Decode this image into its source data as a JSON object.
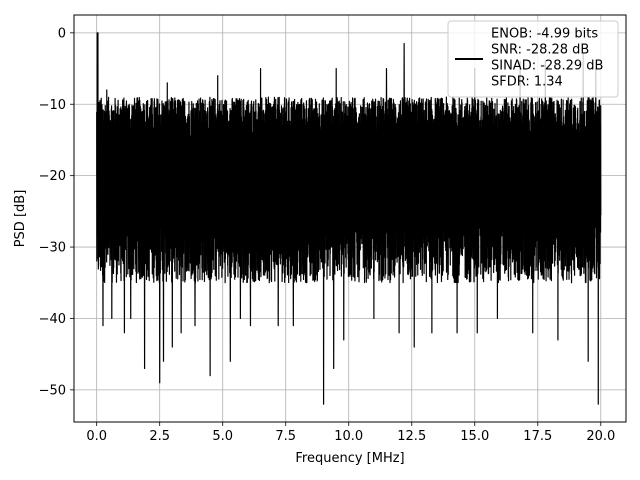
{
  "chart_data": {
    "type": "line",
    "title": "",
    "xlabel": "Frequency [MHz]",
    "ylabel": "PSD [dB]",
    "xlim": [
      -0.9,
      21.0
    ],
    "ylim": [
      -54.5,
      2.5
    ],
    "x_ticks": [
      0.0,
      2.5,
      5.0,
      7.5,
      10.0,
      12.5,
      15.0,
      17.5,
      20.0
    ],
    "x_tick_labels": [
      "0.0",
      "2.5",
      "5.0",
      "7.5",
      "10.0",
      "12.5",
      "15.0",
      "17.5",
      "20.0"
    ],
    "y_ticks": [
      0,
      -10,
      -20,
      -30,
      -40,
      -50
    ],
    "y_tick_labels": [
      "0",
      "−10",
      "−20",
      "−30",
      "−40",
      "−50"
    ],
    "grid": true,
    "legend_position": "top-right",
    "series": [
      {
        "name": "ENOB: -4.99 bits\nSNR: -28.28 dB\nSINAD: -28.29 dB\nSFDR: 1.34",
        "color": "#000000",
        "x_range": [
          0.0,
          20.0
        ],
        "peak": {
          "x": 0.02,
          "y": 0.0
        },
        "typical_upper": -12,
        "typical_lower": -30,
        "deep_minima": [
          {
            "x": 0.25,
            "y": -41
          },
          {
            "x": 0.6,
            "y": -40
          },
          {
            "x": 1.1,
            "y": -42
          },
          {
            "x": 1.35,
            "y": -40
          },
          {
            "x": 1.9,
            "y": -47
          },
          {
            "x": 2.5,
            "y": -49
          },
          {
            "x": 2.65,
            "y": -46
          },
          {
            "x": 3.0,
            "y": -44
          },
          {
            "x": 3.35,
            "y": -42
          },
          {
            "x": 3.9,
            "y": -41
          },
          {
            "x": 4.5,
            "y": -48
          },
          {
            "x": 5.3,
            "y": -46
          },
          {
            "x": 5.7,
            "y": -40
          },
          {
            "x": 6.1,
            "y": -41
          },
          {
            "x": 6.5,
            "y": -40
          },
          {
            "x": 7.2,
            "y": -41
          },
          {
            "x": 7.8,
            "y": -41
          },
          {
            "x": 9.0,
            "y": -52
          },
          {
            "x": 9.4,
            "y": -47
          },
          {
            "x": 9.8,
            "y": -43
          },
          {
            "x": 11.0,
            "y": -40
          },
          {
            "x": 12.0,
            "y": -42
          },
          {
            "x": 12.6,
            "y": -44
          },
          {
            "x": 13.3,
            "y": -42
          },
          {
            "x": 14.3,
            "y": -42
          },
          {
            "x": 15.1,
            "y": -42
          },
          {
            "x": 15.9,
            "y": -40
          },
          {
            "x": 17.3,
            "y": -42
          },
          {
            "x": 18.3,
            "y": -43
          },
          {
            "x": 19.5,
            "y": -46
          },
          {
            "x": 19.9,
            "y": -52
          }
        ],
        "high_peaks": [
          {
            "x": 0.05,
            "y": 0.0
          },
          {
            "x": 0.4,
            "y": -8
          },
          {
            "x": 2.8,
            "y": -7
          },
          {
            "x": 4.8,
            "y": -6
          },
          {
            "x": 6.5,
            "y": -5
          },
          {
            "x": 9.5,
            "y": -5
          },
          {
            "x": 11.5,
            "y": -5
          },
          {
            "x": 12.2,
            "y": -1.5
          },
          {
            "x": 15.0,
            "y": -5
          },
          {
            "x": 16.8,
            "y": -4
          },
          {
            "x": 17.8,
            "y": -4
          },
          {
            "x": 19.3,
            "y": -3
          },
          {
            "x": 19.8,
            "y": -5
          }
        ]
      }
    ]
  }
}
